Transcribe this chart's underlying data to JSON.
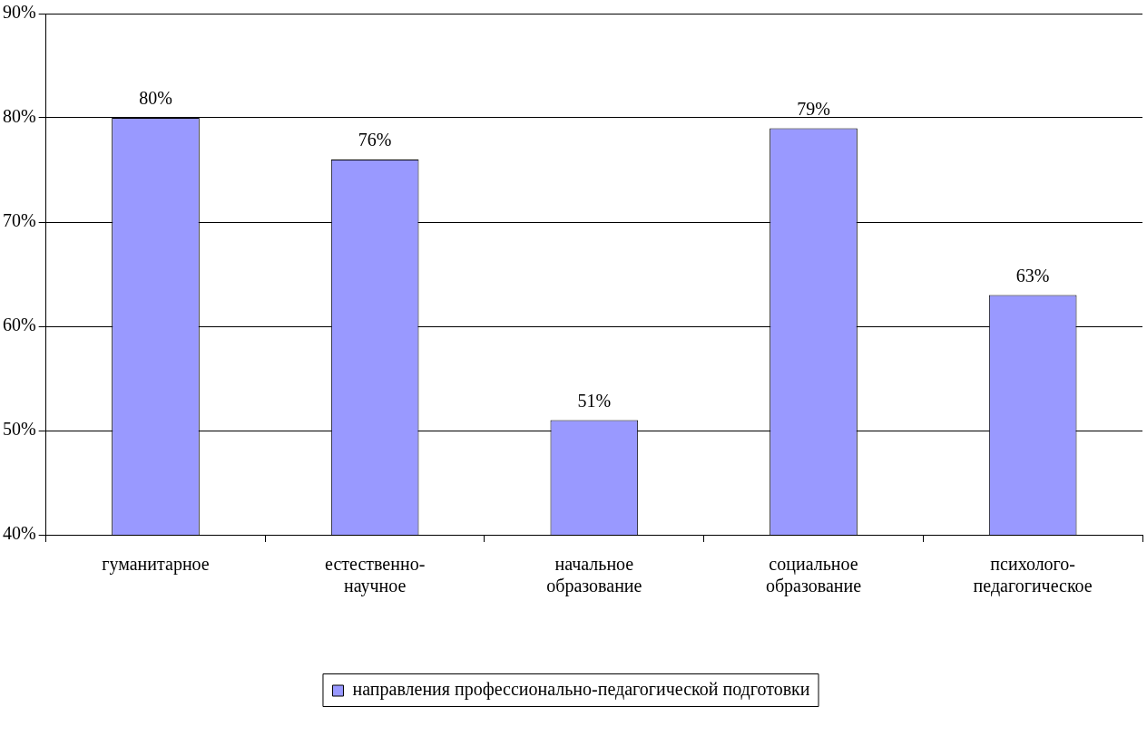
{
  "chart_data": {
    "type": "bar",
    "categories": [
      "гуманитарное",
      "естественно-научное",
      "начальное образование",
      "социальное образование",
      "психолого-педагогическое"
    ],
    "series": [
      {
        "name": "направления профессионально-педагогической подготовки",
        "color": "#9999ff",
        "values": [
          80,
          76,
          51,
          79,
          63
        ],
        "value_labels": [
          "80%",
          "76%",
          "51%",
          "79%",
          "63%"
        ]
      }
    ],
    "ylim": [
      40,
      90
    ],
    "yticks": [
      {
        "value": 40,
        "label": "40%"
      },
      {
        "value": 50,
        "label": "50%"
      },
      {
        "value": 60,
        "label": "60%"
      },
      {
        "value": 70,
        "label": "70%"
      },
      {
        "value": 80,
        "label": "80%"
      },
      {
        "value": 90,
        "label": "90%"
      }
    ],
    "grid": "y",
    "legend": "bottom"
  }
}
